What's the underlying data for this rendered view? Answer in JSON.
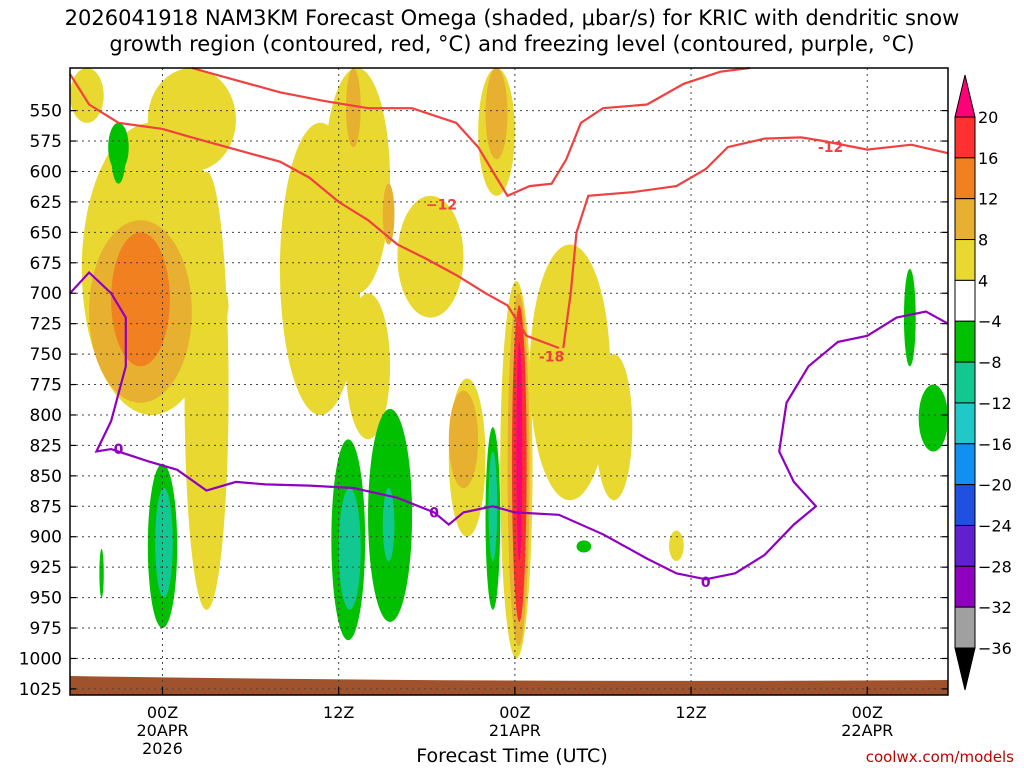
{
  "title_line1": "2026041918 NAM3KM Forecast Omega (shaded, μbar/s) for KRIC with dendritic snow",
  "title_line2": "growth region (contoured, red, °C) and freezing level (contoured, purple, °C)",
  "xaxis_title": "Forecast Time (UTC)",
  "credit": "coolwx.com/models",
  "chart_data": {
    "type": "heatmap",
    "xlabel": "Forecast Time (UTC)",
    "ylabel": "",
    "x_range_hours_utc": [
      -6.3,
      53.5
    ],
    "y_range_hpa": [
      515,
      1030
    ],
    "y_ticks": [
      550,
      575,
      600,
      625,
      650,
      675,
      700,
      725,
      750,
      775,
      800,
      825,
      850,
      875,
      900,
      925,
      950,
      975,
      1000,
      1025
    ],
    "x_ticks": [
      {
        "hour": 0,
        "lines": [
          "00Z",
          "20APR",
          "2026"
        ]
      },
      {
        "hour": 12,
        "lines": [
          "12Z"
        ]
      },
      {
        "hour": 24,
        "lines": [
          "00Z",
          "21APR"
        ]
      },
      {
        "hour": 36,
        "lines": [
          "12Z"
        ]
      },
      {
        "hour": 48,
        "lines": [
          "00Z",
          "22APR"
        ]
      }
    ],
    "colorbar": {
      "levels": [
        20,
        16,
        12,
        8,
        4,
        -4,
        -8,
        -12,
        -16,
        -20,
        -24,
        -28,
        -32,
        -36
      ],
      "colors": [
        "#ff0077",
        "#ff3030",
        "#f08020",
        "#e8b030",
        "#e8d830",
        "#ffffff",
        "#00c000",
        "#10c890",
        "#20c8c8",
        "#1090f0",
        "#2050e0",
        "#6020d0",
        "#9000c0",
        "#a0a0a0",
        "#000000"
      ]
    },
    "omega_regions": [
      {
        "value": 4,
        "color": "#e8d830",
        "x": [
          -6.3,
          -4
        ],
        "y": [
          515,
          560
        ]
      },
      {
        "value": 4,
        "color": "#e8d830",
        "x": [
          -5.5,
          4
        ],
        "y": [
          560,
          800
        ]
      },
      {
        "value": 4,
        "color": "#e8d830",
        "x": [
          -1,
          5
        ],
        "y": [
          515,
          600
        ]
      },
      {
        "value": 4,
        "color": "#e8d830",
        "x": [
          1.5,
          4.5
        ],
        "y": [
          600,
          960
        ]
      },
      {
        "value": 4,
        "color": "#e8d830",
        "x": [
          2.5,
          4.5
        ],
        "y": [
          690,
          730
        ]
      },
      {
        "value": 4,
        "color": "#e8d830",
        "x": [
          8,
          13.5
        ],
        "y": [
          560,
          800
        ]
      },
      {
        "value": 4,
        "color": "#e8d830",
        "x": [
          11,
          15.5
        ],
        "y": [
          515,
          700
        ]
      },
      {
        "value": 4,
        "color": "#e8d830",
        "x": [
          12.5,
          15.5
        ],
        "y": [
          700,
          820
        ]
      },
      {
        "value": 4,
        "color": "#e8d830",
        "x": [
          16,
          20.5
        ],
        "y": [
          620,
          720
        ]
      },
      {
        "value": 4,
        "color": "#e8d830",
        "x": [
          21.5,
          24
        ],
        "y": [
          515,
          620
        ]
      },
      {
        "value": 4,
        "color": "#e8d830",
        "x": [
          19.5,
          22
        ],
        "y": [
          770,
          900
        ]
      },
      {
        "value": 4,
        "color": "#e8d830",
        "x": [
          23,
          25.2
        ],
        "y": [
          690,
          1000
        ]
      },
      {
        "value": 4,
        "color": "#e8d830",
        "x": [
          25,
          30.5
        ],
        "y": [
          660,
          870
        ]
      },
      {
        "value": 4,
        "color": "#e8d830",
        "x": [
          29.5,
          32
        ],
        "y": [
          750,
          870
        ]
      },
      {
        "value": 4,
        "color": "#e8d830",
        "x": [
          34.5,
          35.5
        ],
        "y": [
          895,
          920
        ]
      },
      {
        "value": 8,
        "color": "#e8b030",
        "x": [
          -5,
          2
        ],
        "y": [
          640,
          790
        ]
      },
      {
        "value": 8,
        "color": "#e8b030",
        "x": [
          12.5,
          13.5
        ],
        "y": [
          515,
          580
        ]
      },
      {
        "value": 8,
        "color": "#e8b030",
        "x": [
          15,
          15.8
        ],
        "y": [
          610,
          660
        ]
      },
      {
        "value": 8,
        "color": "#e8b030",
        "x": [
          22,
          23.5
        ],
        "y": [
          515,
          590
        ]
      },
      {
        "value": 8,
        "color": "#e8b030",
        "x": [
          19.5,
          21.5
        ],
        "y": [
          780,
          860
        ]
      },
      {
        "value": 8,
        "color": "#e8b030",
        "x": [
          23.5,
          25
        ],
        "y": [
          700,
          990
        ]
      },
      {
        "value": 12,
        "color": "#f08020",
        "x": [
          -3.5,
          0.5
        ],
        "y": [
          650,
          760
        ]
      },
      {
        "value": 16,
        "color": "#ff3030",
        "x": [
          23.8,
          24.8
        ],
        "y": [
          710,
          970
        ]
      },
      {
        "value": 20,
        "color": "#ff0077",
        "x": [
          24.1,
          24.5
        ],
        "y": [
          740,
          920
        ]
      },
      {
        "value": -4,
        "color": "#00c000",
        "x": [
          -3.5,
          -2.5
        ],
        "y": [
          560,
          610
        ]
      },
      {
        "value": -4,
        "color": "#00c000",
        "x": [
          -3.7,
          -2.3
        ],
        "y": [
          560,
          600
        ]
      },
      {
        "value": -4,
        "color": "#00c000",
        "x": [
          -1,
          1
        ],
        "y": [
          840,
          975
        ]
      },
      {
        "value": -4,
        "color": "#00c000",
        "x": [
          -4.3,
          -4
        ],
        "y": [
          910,
          950
        ]
      },
      {
        "value": -4,
        "color": "#00c000",
        "x": [
          11.5,
          13.8
        ],
        "y": [
          820,
          985
        ]
      },
      {
        "value": -4,
        "color": "#00c000",
        "x": [
          14,
          17
        ],
        "y": [
          795,
          970
        ]
      },
      {
        "value": -4,
        "color": "#00c000",
        "x": [
          22,
          23
        ],
        "y": [
          810,
          960
        ]
      },
      {
        "value": -4,
        "color": "#00c000",
        "x": [
          28.2,
          29.2
        ],
        "y": [
          903,
          913
        ]
      },
      {
        "value": -4,
        "color": "#00c000",
        "x": [
          50.5,
          51.3
        ],
        "y": [
          680,
          760
        ]
      },
      {
        "value": -4,
        "color": "#00c000",
        "x": [
          51.5,
          53.5
        ],
        "y": [
          775,
          830
        ]
      },
      {
        "value": -8,
        "color": "#10c890",
        "x": [
          -0.5,
          0.7
        ],
        "y": [
          860,
          950
        ]
      },
      {
        "value": -8,
        "color": "#10c890",
        "x": [
          12,
          13.5
        ],
        "y": [
          860,
          960
        ]
      },
      {
        "value": -8,
        "color": "#10c890",
        "x": [
          15,
          15.8
        ],
        "y": [
          860,
          920
        ]
      },
      {
        "value": -8,
        "color": "#10c890",
        "x": [
          22.2,
          22.8
        ],
        "y": [
          830,
          920
        ]
      }
    ],
    "dgz_minus18_isotherm": {
      "label": "-18",
      "color": "#f04040",
      "points": [
        [
          -6.3,
          520
        ],
        [
          -5,
          545
        ],
        [
          -3,
          560
        ],
        [
          0,
          565
        ],
        [
          2,
          572
        ],
        [
          5,
          582
        ],
        [
          8,
          592
        ],
        [
          10,
          605
        ],
        [
          12,
          625
        ],
        [
          14,
          640
        ],
        [
          16,
          660
        ],
        [
          18,
          672
        ],
        [
          20,
          685
        ],
        [
          22,
          700
        ],
        [
          23.5,
          710
        ],
        [
          24.8,
          735
        ],
        [
          27,
          745
        ]
      ],
      "label_at": [
        26.5,
        752
      ]
    },
    "dgz_minus12_isotherm_upper": {
      "label": "-12",
      "color": "#f04040",
      "points": [
        [
          2,
          515
        ],
        [
          5,
          525
        ],
        [
          8,
          535
        ],
        [
          11,
          542
        ],
        [
          14,
          548
        ],
        [
          17,
          548
        ],
        [
          20,
          560
        ],
        [
          21.5,
          580
        ],
        [
          22.5,
          600
        ],
        [
          23.5,
          620
        ],
        [
          25,
          612
        ],
        [
          26.5,
          610
        ],
        [
          27.5,
          590
        ],
        [
          28.5,
          560
        ],
        [
          30,
          548
        ],
        [
          33,
          545
        ],
        [
          35.5,
          528
        ],
        [
          38,
          518
        ],
        [
          40,
          515
        ]
      ],
      "label_at": [
        19,
        627
      ]
    },
    "dgz_minus12_isotherm_lower": {
      "label": "-12",
      "color": "#f04040",
      "points": [
        [
          27.3,
          745
        ],
        [
          27.8,
          700
        ],
        [
          28.2,
          650
        ],
        [
          29,
          620
        ],
        [
          32,
          617
        ],
        [
          35,
          612
        ],
        [
          37,
          598
        ],
        [
          38.5,
          580
        ],
        [
          41,
          573
        ],
        [
          43.5,
          572
        ],
        [
          45,
          575
        ],
        [
          48,
          582
        ],
        [
          51,
          578
        ],
        [
          53.5,
          585
        ]
      ],
      "label_at": [
        45.5,
        580
      ]
    },
    "freezing_level_0C": {
      "label": "0",
      "color": "#9000c0",
      "points": [
        [
          -6.3,
          700
        ],
        [
          -5,
          683
        ],
        [
          -3.5,
          700
        ],
        [
          -2.5,
          720
        ],
        [
          -2.5,
          760
        ],
        [
          -3.5,
          805
        ],
        [
          -4.5,
          830
        ],
        [
          -3.5,
          828
        ],
        [
          -1,
          838
        ],
        [
          1,
          845
        ],
        [
          3,
          862
        ],
        [
          5,
          855
        ],
        [
          7,
          857
        ],
        [
          10,
          858
        ],
        [
          13,
          860
        ],
        [
          16,
          868
        ],
        [
          18.5,
          880
        ],
        [
          19.5,
          890
        ],
        [
          20.5,
          880
        ],
        [
          22.5,
          875
        ],
        [
          24,
          880
        ],
        [
          27,
          882
        ],
        [
          30,
          898
        ],
        [
          33,
          918
        ],
        [
          35,
          930
        ],
        [
          37,
          935
        ],
        [
          39,
          930
        ],
        [
          41,
          915
        ],
        [
          43,
          890
        ],
        [
          44.5,
          875
        ],
        [
          43,
          855
        ],
        [
          42,
          830
        ],
        [
          42.5,
          790
        ],
        [
          44,
          760
        ],
        [
          46,
          740
        ],
        [
          48,
          735
        ],
        [
          50,
          720
        ],
        [
          52,
          715
        ],
        [
          53.5,
          725
        ]
      ],
      "labels_at": [
        [
          -3,
          828
        ],
        [
          18.5,
          880
        ],
        [
          37,
          937
        ]
      ]
    },
    "ground_color": "#a0522d"
  }
}
